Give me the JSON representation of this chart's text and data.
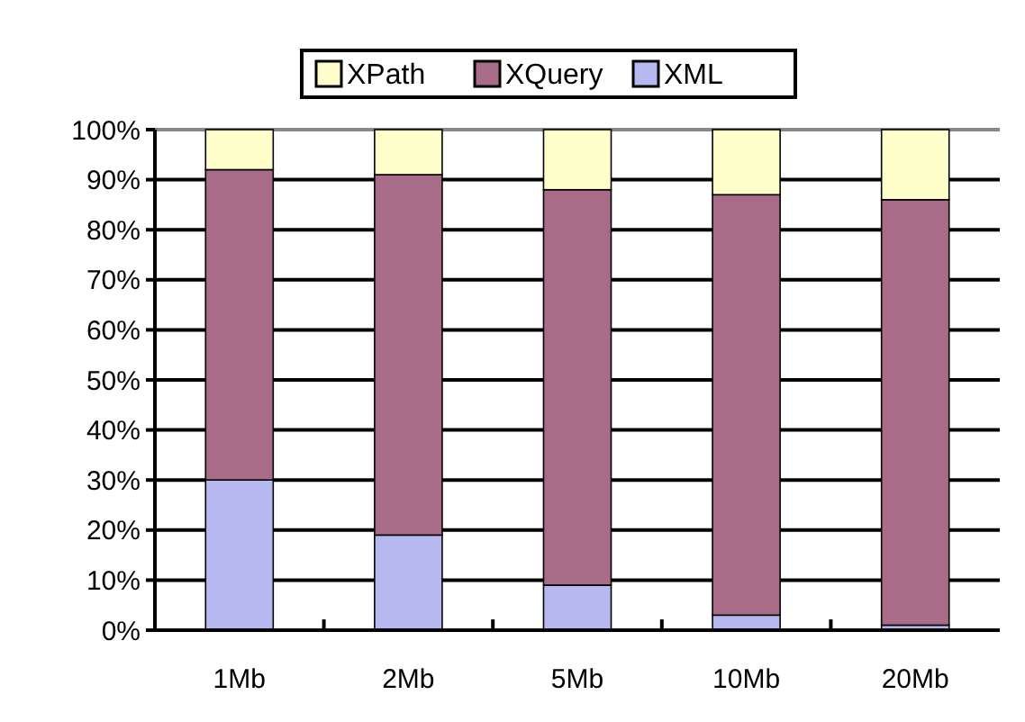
{
  "chart_data": {
    "type": "bar",
    "stacked": true,
    "categories": [
      "1Mb",
      "2Mb",
      "5Mb",
      "10Mb",
      "20Mb"
    ],
    "series": [
      {
        "name": "XML",
        "color": "#b8b8f0",
        "values": [
          30,
          19,
          9,
          3,
          1
        ]
      },
      {
        "name": "XQuery",
        "color": "#a86c88",
        "values": [
          62,
          72,
          79,
          84,
          85
        ]
      },
      {
        "name": "XPath",
        "color": "#ffffcc",
        "values": [
          8,
          9,
          12,
          13,
          14
        ]
      }
    ],
    "ylim": [
      0,
      100
    ],
    "yticks": [
      {
        "value": 0,
        "label": "0%"
      },
      {
        "value": 10,
        "label": "10%"
      },
      {
        "value": 20,
        "label": "20%"
      },
      {
        "value": 30,
        "label": "30%"
      },
      {
        "value": 40,
        "label": "40%"
      },
      {
        "value": 50,
        "label": "50%"
      },
      {
        "value": 60,
        "label": "60%"
      },
      {
        "value": 70,
        "label": "70%"
      },
      {
        "value": 80,
        "label": "80%"
      },
      {
        "value": 90,
        "label": "90%"
      },
      {
        "value": 100,
        "label": "100%"
      }
    ],
    "grid": "y",
    "legend": "top"
  }
}
